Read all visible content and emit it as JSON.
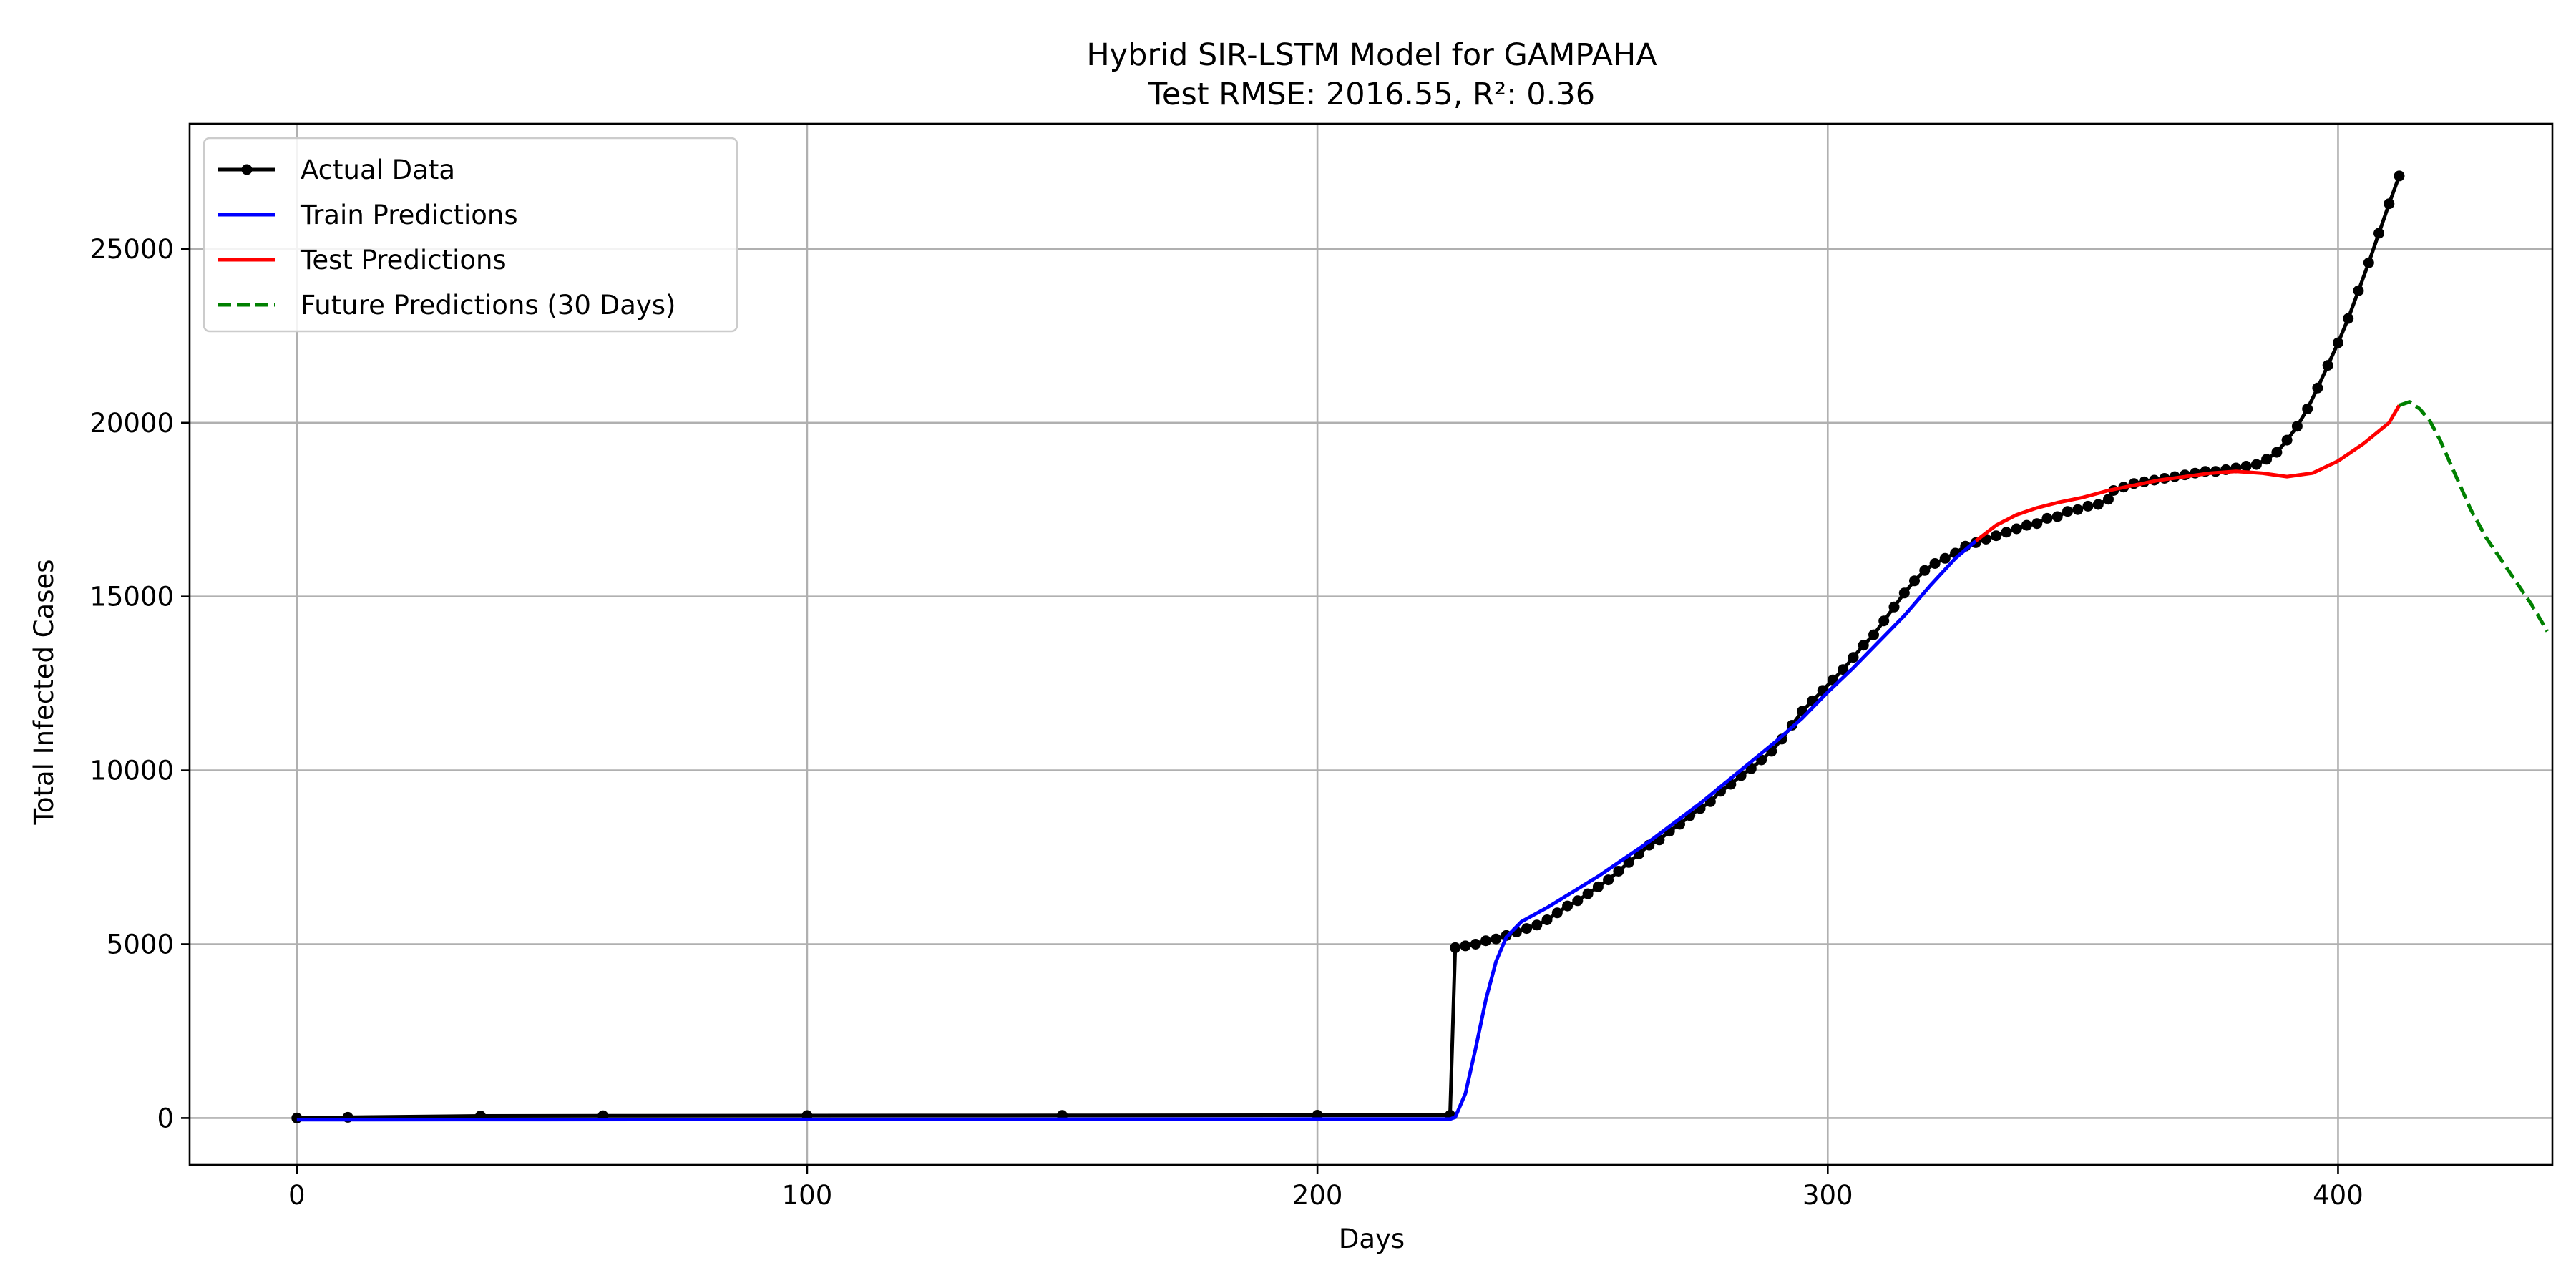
{
  "chart_data": {
    "type": "line",
    "title": "Hybrid SIR-LSTM Model for GAMPAHA",
    "subtitle": "Test RMSE: 2016.55, R²: 0.36",
    "xlabel": "Days",
    "ylabel": "Total Infected Cases",
    "xlim": [
      -21,
      442
    ],
    "ylim": [
      -1350,
      28600
    ],
    "xticks": [
      0,
      100,
      200,
      300,
      400
    ],
    "yticks": [
      0,
      5000,
      10000,
      15000,
      20000,
      25000
    ],
    "grid": true,
    "legend_position": "top-left",
    "series": [
      {
        "name": "Actual Data",
        "color": "#000000",
        "style": "solid-markers",
        "x": [
          0,
          10,
          36,
          60,
          100,
          150,
          200,
          226,
          227,
          229,
          231,
          233,
          235,
          237,
          239,
          241,
          243,
          245,
          247,
          249,
          251,
          253,
          255,
          257,
          259,
          261,
          263,
          265,
          267,
          269,
          271,
          273,
          275,
          277,
          279,
          281,
          283,
          285,
          287,
          289,
          291,
          293,
          295,
          297,
          299,
          301,
          303,
          305,
          307,
          309,
          311,
          313,
          315,
          317,
          319,
          321,
          323,
          325,
          327,
          329,
          331,
          333,
          335,
          337,
          339,
          341,
          343,
          345,
          347,
          349,
          351,
          353,
          355,
          356,
          358,
          360,
          362,
          364,
          366,
          368,
          370,
          372,
          374,
          376,
          378,
          380,
          382,
          384,
          386,
          388,
          390,
          392,
          394,
          396,
          398,
          400,
          402,
          404,
          406,
          408,
          410,
          412
        ],
        "y": [
          0,
          20,
          60,
          65,
          70,
          75,
          80,
          80,
          4900,
          4950,
          5000,
          5100,
          5150,
          5250,
          5350,
          5450,
          5550,
          5700,
          5900,
          6100,
          6250,
          6450,
          6650,
          6850,
          7100,
          7350,
          7600,
          7850,
          8000,
          8250,
          8450,
          8700,
          8900,
          9100,
          9400,
          9600,
          9850,
          10050,
          10300,
          10550,
          10900,
          11300,
          11700,
          12000,
          12300,
          12600,
          12900,
          13250,
          13600,
          13900,
          14300,
          14700,
          15100,
          15450,
          15750,
          15950,
          16100,
          16250,
          16450,
          16550,
          16650,
          16750,
          16850,
          16950,
          17050,
          17100,
          17250,
          17300,
          17450,
          17500,
          17600,
          17650,
          17800,
          18050,
          18150,
          18250,
          18300,
          18350,
          18400,
          18450,
          18500,
          18550,
          18600,
          18600,
          18650,
          18700,
          18750,
          18800,
          18950,
          19150,
          19500,
          19900,
          20400,
          21000,
          21650,
          22300,
          23000,
          23800,
          24600,
          25450,
          26300,
          27100
        ]
      },
      {
        "name": "Train Predictions",
        "color": "#0000ff",
        "style": "solid",
        "x": [
          0,
          100,
          200,
          226,
          227,
          229,
          231,
          233,
          235,
          237,
          240,
          245,
          250,
          255,
          260,
          265,
          270,
          275,
          280,
          285,
          290,
          295,
          300,
          305,
          310,
          315,
          320,
          325,
          329
        ],
        "y": [
          -50,
          -40,
          -30,
          -30,
          20,
          700,
          2000,
          3400,
          4500,
          5200,
          5650,
          6050,
          6500,
          6950,
          7450,
          7950,
          8500,
          9050,
          9650,
          10250,
          10850,
          11500,
          12250,
          12950,
          13700,
          14450,
          15300,
          16100,
          16600
        ]
      },
      {
        "name": "Test Predictions",
        "color": "#ff0000",
        "style": "solid",
        "x": [
          329,
          333,
          337,
          341,
          345,
          350,
          355,
          360,
          365,
          370,
          375,
          380,
          385,
          390,
          395,
          400,
          405,
          410,
          412
        ],
        "y": [
          16600,
          17050,
          17350,
          17550,
          17700,
          17850,
          18050,
          18200,
          18350,
          18450,
          18550,
          18600,
          18550,
          18450,
          18550,
          18900,
          19400,
          20000,
          20500
        ]
      },
      {
        "name": "Future Predictions (30 Days)",
        "color": "#008000",
        "style": "dashed",
        "x": [
          412,
          414,
          416,
          418,
          420,
          423,
          426,
          429,
          432,
          435,
          438,
          441
        ],
        "y": [
          20500,
          20600,
          20400,
          20050,
          19500,
          18500,
          17500,
          16700,
          16050,
          15400,
          14750,
          14000
        ]
      }
    ]
  }
}
